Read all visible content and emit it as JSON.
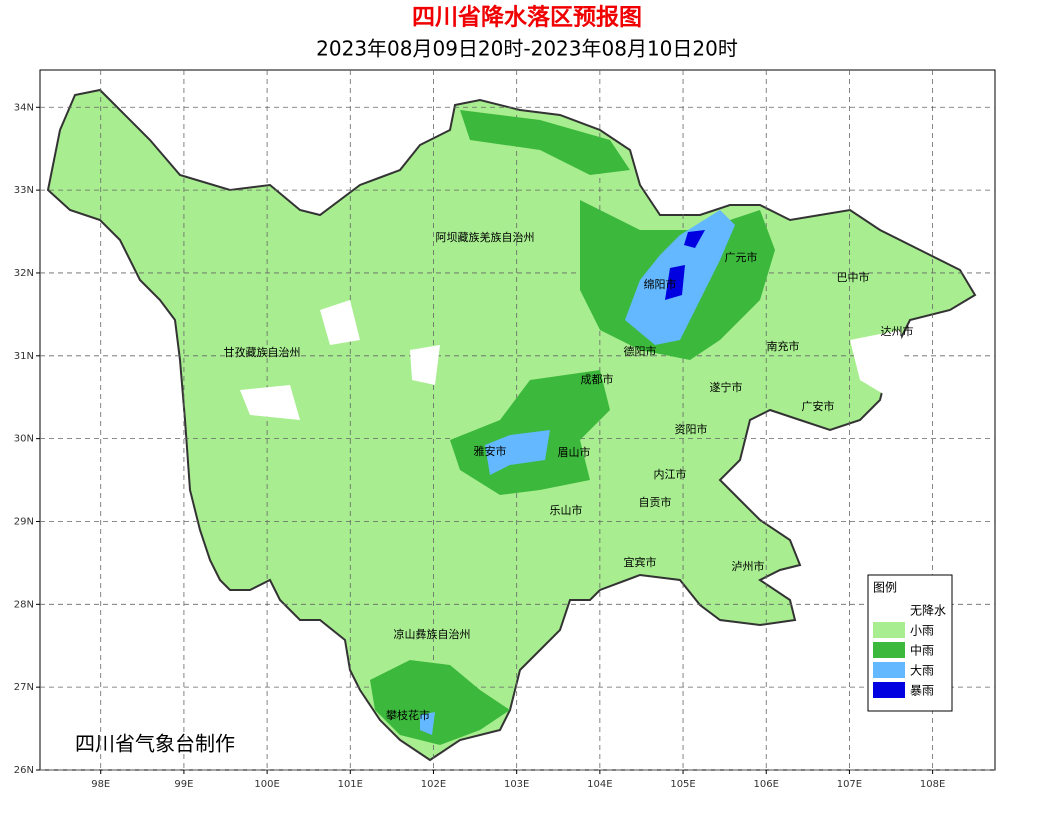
{
  "title": "四川省降水落区预报图",
  "subtitle": "2023年08月09日20时-2023年08月10日20时",
  "footer": "四川省气象台制作",
  "map": {
    "xlim": [
      97.27,
      108.75
    ],
    "ylim": [
      26,
      34.45
    ],
    "xticks": [
      {
        "value": 98,
        "label": "98E"
      },
      {
        "value": 99,
        "label": "99E"
      },
      {
        "value": 100,
        "label": "100E"
      },
      {
        "value": 101,
        "label": "101E"
      },
      {
        "value": 102,
        "label": "102E"
      },
      {
        "value": 103,
        "label": "103E"
      },
      {
        "value": 104,
        "label": "104E"
      },
      {
        "value": 105,
        "label": "105E"
      },
      {
        "value": 106,
        "label": "106E"
      },
      {
        "value": 107,
        "label": "107E"
      },
      {
        "value": 108,
        "label": "108E"
      }
    ],
    "yticks": [
      {
        "value": 26,
        "label": "26N"
      },
      {
        "value": 27,
        "label": "27N"
      },
      {
        "value": 28,
        "label": "28N"
      },
      {
        "value": 29,
        "label": "29N"
      },
      {
        "value": 30,
        "label": "30N"
      },
      {
        "value": 31,
        "label": "31N"
      },
      {
        "value": 32,
        "label": "32N"
      },
      {
        "value": 33,
        "label": "33N"
      },
      {
        "value": 34,
        "label": "34N"
      }
    ],
    "grid": true,
    "regions": [
      "阿坝藏族羌族自治州",
      "甘孜藏族自治州",
      "广元市",
      "巴中市",
      "绵阳市",
      "达州市",
      "德阳市",
      "南充市",
      "成都市",
      "遂宁市",
      "广安市",
      "资阳市",
      "雅安市",
      "眉山市",
      "内江市",
      "自贡市",
      "乐山市",
      "宜宾市",
      "泸州市",
      "凉山彝族自治州",
      "攀枝花市"
    ]
  },
  "legend": {
    "title": "图例",
    "entries": [
      {
        "name": "无降水",
        "color": "#ffffff"
      },
      {
        "name": "小雨",
        "color": "#a8ee90"
      },
      {
        "name": "中雨",
        "color": "#3cb93c"
      },
      {
        "name": "大雨",
        "color": "#63b8ff"
      },
      {
        "name": "暴雨",
        "color": "#0000e1"
      }
    ]
  }
}
